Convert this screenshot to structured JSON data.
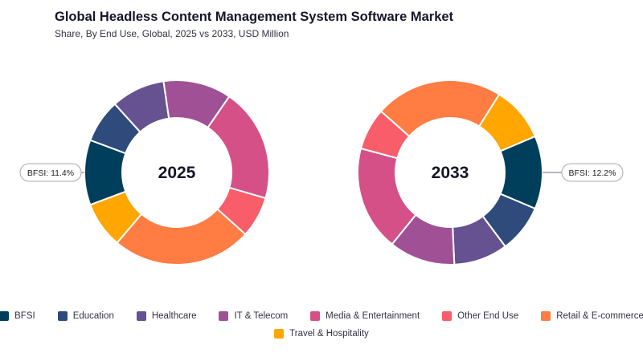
{
  "header": {
    "title": "Global Headless Content Management System Software Market",
    "subtitle": "Share, By End Use, Global, 2025 vs 2033, USD Million"
  },
  "chart_data": {
    "type": "pie",
    "style": "donut",
    "categories": [
      "BFSI",
      "Education",
      "Healthcare",
      "IT & Telecom",
      "Media & Entertainment",
      "Other End Use",
      "Retail & E-commerce",
      "Travel & Hospitality"
    ],
    "colors": [
      "#003f5c",
      "#2f4b7c",
      "#665191",
      "#a05195",
      "#d45087",
      "#f95d6a",
      "#ff7c43",
      "#ffa600"
    ],
    "series": [
      {
        "name": "2025",
        "values": [
          11.4,
          7.6,
          9.4,
          11.9,
          19.9,
          7.2,
          24.5,
          8.1
        ]
      },
      {
        "name": "2033",
        "values": [
          12.2,
          8.0,
          9.0,
          11.0,
          17.5,
          7.0,
          21.3,
          9.2
        ]
      }
    ],
    "annotations": [
      {
        "chart": "2025",
        "text": "BFSI: 11.4%",
        "side": "left"
      },
      {
        "chart": "2033",
        "text": "BFSI: 12.2%",
        "side": "right"
      }
    ],
    "legend_position": "bottom"
  },
  "legend": {
    "items": [
      "BFSI",
      "Education",
      "Healthcare",
      "IT & Telecom",
      "Media & Entertainment",
      "Other End Use",
      "Retail & E-commerce",
      "Travel & Hospitality"
    ]
  }
}
